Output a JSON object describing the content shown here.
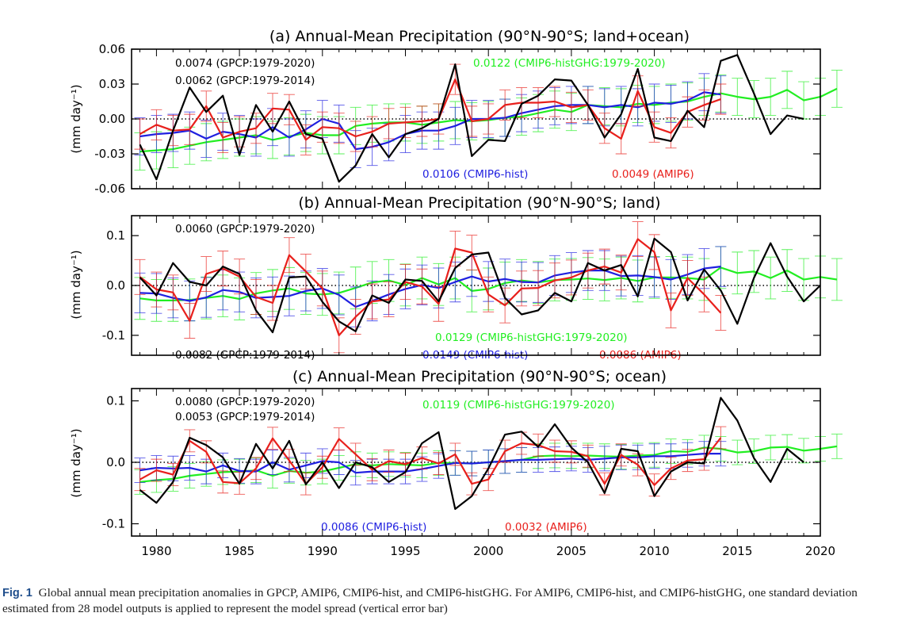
{
  "colors": {
    "gpcp": "#000000",
    "amip6": "#e8201c",
    "hist": "#2020e0",
    "histghg": "#22ee22"
  },
  "caption": {
    "label": "Fig. 1",
    "text": "Global annual mean precipitation anomalies in GPCP, AMIP6, CMIP6-hist, and CMIP6-histGHG. For AMIP6, CMIP6-hist, and CMIP6-histGHG, one standard deviation estimated from 28 model outputs is applied to represent the model spread (vertical error bar)"
  },
  "chart_data": [
    {
      "type": "line",
      "title": "(a) Annual-Mean Precipitation (90°N-90°S; land+ocean)",
      "ylabel": "(mm day⁻¹)",
      "xlim": [
        1978.5,
        2020
      ],
      "ylim": [
        -0.06,
        0.06
      ],
      "yticks": [
        -0.06,
        -0.03,
        0.0,
        0.03,
        0.06
      ],
      "ytick_labels": [
        "-0.06",
        "-0.03",
        "0.00",
        "0.03",
        "0.06"
      ],
      "xticks": [
        1980,
        1985,
        1990,
        1995,
        2000,
        2005,
        2010,
        2015,
        2020
      ],
      "annotations": [
        {
          "text": "0.0074  (GPCP:1979-2020)",
          "series": "gpcp"
        },
        {
          "text": "0.0062  (GPCP:1979-2014)",
          "series": "gpcp"
        },
        {
          "text": "0.0122  (CMIP6-histGHG:1979-2020)",
          "series": "histghg"
        },
        {
          "text": "0.0106  (CMIP6-hist)",
          "series": "hist"
        },
        {
          "text": "0.0049  (AMIP6)",
          "series": "amip6"
        }
      ],
      "series": [
        {
          "name": "CMIP6-histGHG",
          "key": "histghg",
          "x_start": 1979,
          "err": 0.016,
          "values": [
            -0.028,
            -0.027,
            -0.026,
            -0.023,
            -0.02,
            -0.018,
            -0.016,
            -0.014,
            -0.018,
            -0.015,
            -0.012,
            -0.014,
            -0.014,
            -0.006,
            -0.004,
            -0.003,
            -0.003,
            -0.005,
            -0.003,
            -0.001,
            -0.002,
            -0.001,
            0.001,
            0.002,
            0.005,
            0.008,
            0.006,
            0.012,
            0.011,
            0.01,
            0.013,
            0.012,
            0.014,
            0.015,
            0.019,
            0.022,
            0.019,
            0.017,
            0.019,
            0.025,
            0.016,
            0.019,
            0.026
          ]
        },
        {
          "name": "CMIP6-hist",
          "key": "hist",
          "x_start": 1979,
          "err": 0.016,
          "values": [
            -0.015,
            -0.013,
            -0.012,
            -0.01,
            -0.017,
            -0.011,
            -0.013,
            -0.016,
            -0.007,
            -0.016,
            -0.009,
            0.0,
            -0.004,
            -0.026,
            -0.024,
            -0.02,
            -0.013,
            -0.01,
            -0.01,
            -0.006,
            0.0,
            0.0,
            0.001,
            0.005,
            0.008,
            0.011,
            0.012,
            0.012,
            0.01,
            0.012,
            0.01,
            0.014,
            0.013,
            0.016,
            0.023,
            0.021
          ]
        },
        {
          "name": "AMIP6",
          "key": "amip6",
          "x_start": 1979,
          "err": 0.013,
          "values": [
            -0.013,
            -0.005,
            -0.01,
            -0.009,
            0.011,
            -0.016,
            -0.011,
            -0.008,
            0.009,
            0.008,
            -0.018,
            -0.007,
            -0.008,
            -0.015,
            -0.011,
            -0.004,
            -0.003,
            -0.002,
            0.0,
            0.034,
            -0.002,
            0.0,
            0.012,
            0.014,
            0.014,
            0.015,
            0.01,
            0.012,
            -0.008,
            -0.017,
            0.024,
            -0.007,
            -0.012,
            0.006,
            0.012,
            0.017
          ]
        },
        {
          "name": "GPCP",
          "key": "gpcp",
          "x_start": 1979,
          "values": [
            -0.022,
            -0.052,
            -0.01,
            0.027,
            0.006,
            0.02,
            -0.031,
            0.012,
            -0.011,
            0.015,
            -0.013,
            -0.017,
            -0.054,
            -0.04,
            -0.013,
            -0.033,
            -0.013,
            -0.008,
            0.0,
            0.047,
            -0.032,
            -0.018,
            -0.019,
            0.013,
            0.02,
            0.034,
            0.033,
            0.012,
            -0.016,
            0.004,
            0.043,
            -0.016,
            -0.019,
            0.007,
            -0.007,
            0.05,
            0.055,
            0.022,
            -0.013,
            0.003,
            0.0
          ]
        }
      ]
    },
    {
      "type": "line",
      "title": "(b) Annual-Mean Precipitation (90°N-90°S; land)",
      "ylabel": "(mm day⁻¹)",
      "xlim": [
        1978.5,
        2020
      ],
      "ylim": [
        -0.14,
        0.14
      ],
      "yticks": [
        -0.1,
        0.0,
        0.1
      ],
      "ytick_labels": [
        "-0.1",
        "0.0",
        "0.1"
      ],
      "xticks": [
        1980,
        1985,
        1990,
        1995,
        2000,
        2005,
        2010,
        2015,
        2020
      ],
      "annotations": [
        {
          "text": "0.0060  (GPCP:1979-2020)",
          "series": "gpcp"
        },
        {
          "text": "0.0082  (GPCP:1979-2014)",
          "series": "gpcp"
        },
        {
          "text": "0.0129  (CMIP6-histGHG:1979-2020)",
          "series": "histghg"
        },
        {
          "text": "0.0149  (CMIP6-hist)",
          "series": "hist"
        },
        {
          "text": "0.0086  (AMIP6)",
          "series": "amip6"
        }
      ],
      "series": [
        {
          "name": "CMIP6-histGHG",
          "key": "histghg",
          "x_start": 1979,
          "err": 0.042,
          "values": [
            -0.026,
            -0.03,
            -0.03,
            -0.029,
            -0.025,
            -0.021,
            -0.027,
            -0.016,
            -0.01,
            -0.006,
            -0.016,
            -0.018,
            -0.015,
            -0.005,
            0.006,
            0.01,
            0.001,
            0.015,
            0.002,
            0.015,
            -0.011,
            -0.007,
            0.005,
            0.01,
            0.006,
            0.011,
            0.012,
            0.014,
            0.011,
            0.015,
            0.009,
            0.016,
            0.016,
            0.015,
            0.012,
            0.036,
            0.025,
            0.028,
            0.015,
            0.03,
            0.012,
            0.017,
            0.012
          ]
        },
        {
          "name": "CMIP6-hist",
          "key": "hist",
          "x_start": 1979,
          "err": 0.04,
          "values": [
            -0.015,
            -0.016,
            -0.025,
            -0.031,
            -0.024,
            -0.009,
            -0.013,
            -0.025,
            -0.023,
            -0.021,
            -0.011,
            -0.006,
            -0.019,
            -0.043,
            -0.031,
            -0.018,
            -0.007,
            0.001,
            -0.005,
            0.007,
            0.018,
            0.008,
            0.013,
            0.007,
            0.006,
            0.02,
            0.026,
            0.03,
            0.03,
            0.019,
            0.02,
            0.017,
            0.012,
            0.022,
            0.034,
            0.038
          ]
        },
        {
          "name": "AMIP6",
          "key": "amip6",
          "x_start": 1979,
          "err": 0.035,
          "values": [
            0.017,
            -0.008,
            -0.014,
            -0.071,
            0.023,
            0.034,
            0.018,
            -0.023,
            -0.035,
            0.061,
            0.028,
            -0.006,
            -0.1,
            -0.063,
            -0.032,
            -0.028,
            0.007,
            -0.002,
            -0.037,
            0.074,
            0.066,
            -0.018,
            -0.04,
            -0.006,
            -0.005,
            0.01,
            0.016,
            0.03,
            0.038,
            0.026,
            0.093,
            0.067,
            -0.05,
            0.015,
            -0.018,
            -0.055
          ]
        },
        {
          "name": "GPCP",
          "key": "gpcp",
          "x_start": 1979,
          "values": [
            0.016,
            -0.02,
            0.045,
            0.007,
            0.0,
            0.038,
            0.023,
            -0.05,
            -0.094,
            0.016,
            0.018,
            -0.033,
            -0.072,
            -0.092,
            -0.02,
            -0.035,
            0.012,
            0.009,
            -0.032,
            0.035,
            0.062,
            0.066,
            -0.025,
            -0.058,
            -0.05,
            -0.015,
            -0.032,
            0.045,
            0.03,
            0.041,
            -0.022,
            0.094,
            0.067,
            -0.03,
            0.032,
            -0.01,
            -0.077,
            0.015,
            0.085,
            0.018,
            -0.032,
            0.0
          ]
        }
      ]
    },
    {
      "type": "line",
      "title": "(c) Annual-Mean Precipitation (90°N-90°S; ocean)",
      "ylabel": "(mm day⁻¹)",
      "xlim": [
        1978.5,
        2020
      ],
      "ylim": [
        -0.12,
        0.12
      ],
      "yticks": [
        -0.1,
        0.0,
        0.1
      ],
      "ytick_labels": [
        "-0.1",
        "0.0",
        "0.1"
      ],
      "xticks": [
        1980,
        1985,
        1990,
        1995,
        2000,
        2005,
        2010,
        2015,
        2020
      ],
      "xtick_labels": [
        "1980",
        "1985",
        "1990",
        "1995",
        "2000",
        "2005",
        "2010",
        "2015",
        "2020"
      ],
      "annotations": [
        {
          "text": "0.0080  (GPCP:1979-2020)",
          "series": "gpcp"
        },
        {
          "text": "0.0053  (GPCP:1979-2014)",
          "series": "gpcp"
        },
        {
          "text": "0.0119  (CMIP6-histGHG:1979-2020)",
          "series": "histghg"
        },
        {
          "text": "0.0086  (CMIP6-hist)",
          "series": "hist"
        },
        {
          "text": "0.0032  (AMIP6)",
          "series": "amip6"
        }
      ],
      "series": [
        {
          "name": "CMIP6-histGHG",
          "key": "histghg",
          "x_start": 1979,
          "err": 0.02,
          "values": [
            -0.032,
            -0.029,
            -0.027,
            -0.022,
            -0.019,
            -0.016,
            -0.015,
            -0.013,
            -0.022,
            -0.014,
            -0.017,
            -0.015,
            -0.009,
            -0.003,
            -0.005,
            -0.003,
            -0.004,
            -0.005,
            -0.001,
            -0.001,
            -0.002,
            0.0,
            0.002,
            0.004,
            0.01,
            0.011,
            0.01,
            0.011,
            0.01,
            0.009,
            0.011,
            0.012,
            0.018,
            0.017,
            0.024,
            0.022,
            0.016,
            0.018,
            0.024,
            0.025,
            0.019,
            0.022,
            0.026
          ]
        },
        {
          "name": "CMIP6-hist",
          "key": "hist",
          "x_start": 1979,
          "err": 0.02,
          "values": [
            -0.013,
            -0.009,
            -0.01,
            -0.009,
            -0.015,
            -0.005,
            -0.014,
            -0.015,
            0.0,
            -0.012,
            -0.005,
            0.002,
            0.0,
            -0.017,
            -0.015,
            -0.015,
            -0.015,
            -0.011,
            -0.006,
            -0.001,
            -0.002,
            0.0,
            0.002,
            0.004,
            0.004,
            0.005,
            0.006,
            0.004,
            0.006,
            0.008,
            0.008,
            0.01,
            0.01,
            0.012,
            0.014,
            0.014
          ]
        },
        {
          "name": "AMIP6",
          "key": "amip6",
          "x_start": 1979,
          "err": 0.018,
          "values": [
            -0.028,
            -0.013,
            -0.02,
            0.035,
            0.017,
            -0.032,
            -0.034,
            -0.01,
            0.039,
            0.003,
            -0.035,
            -0.008,
            0.038,
            0.013,
            -0.012,
            0.002,
            -0.003,
            0.007,
            -0.002,
            0.013,
            -0.035,
            -0.028,
            0.018,
            0.031,
            0.028,
            0.018,
            0.017,
            0.01,
            -0.035,
            0.012,
            -0.004,
            -0.037,
            -0.01,
            0.003,
            0.005,
            0.04
          ]
        },
        {
          "name": "GPCP",
          "key": "gpcp",
          "x_start": 1979,
          "values": [
            -0.045,
            -0.066,
            -0.032,
            0.04,
            0.028,
            0.008,
            -0.035,
            0.03,
            -0.01,
            0.035,
            -0.036,
            0.0,
            -0.042,
            0.0,
            -0.008,
            -0.032,
            -0.016,
            0.031,
            0.049,
            -0.076,
            -0.055,
            -0.01,
            0.045,
            0.05,
            0.025,
            0.062,
            0.024,
            0.0,
            -0.05,
            0.022,
            0.018,
            -0.055,
            -0.015,
            0.0,
            -0.002,
            0.105,
            0.068,
            0.007,
            -0.032,
            0.022,
            0.0
          ]
        }
      ]
    }
  ]
}
